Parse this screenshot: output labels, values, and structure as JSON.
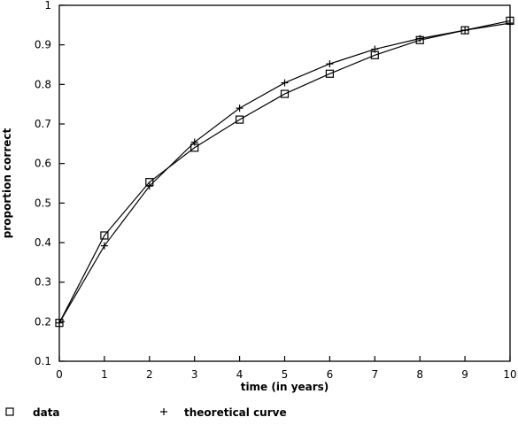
{
  "chart_data": {
    "type": "line",
    "title": "",
    "xlabel": "time (in years)",
    "ylabel": "proportion correct",
    "xlim": [
      0,
      10
    ],
    "ylim": [
      0.1,
      1
    ],
    "x_ticks": [
      0,
      1,
      2,
      3,
      4,
      5,
      6,
      7,
      8,
      9,
      10
    ],
    "y_ticks": [
      0.1,
      0.2,
      0.3,
      0.4,
      0.5,
      0.6,
      0.7,
      0.8,
      0.9,
      1
    ],
    "y_tick_labels": [
      "0.1",
      "0.2",
      "0.3",
      "0.4",
      "0.5",
      "0.6",
      "0.7",
      "0.8",
      "0.9",
      "1"
    ],
    "grid": false,
    "legend_position": "bottom-left",
    "color": "#000000",
    "x": [
      0,
      1,
      2,
      3,
      4,
      5,
      6,
      7,
      8,
      9,
      10
    ],
    "series": [
      {
        "name": "data",
        "marker": "square",
        "values": [
          0.197,
          0.418,
          0.553,
          0.64,
          0.711,
          0.776,
          0.827,
          0.874,
          0.912,
          0.937,
          0.961
        ]
      },
      {
        "name": "theoretical curve",
        "marker": "plus",
        "values": [
          0.197,
          0.392,
          0.543,
          0.654,
          0.74,
          0.804,
          0.852,
          0.889,
          0.916,
          0.937,
          0.955
        ]
      }
    ]
  }
}
